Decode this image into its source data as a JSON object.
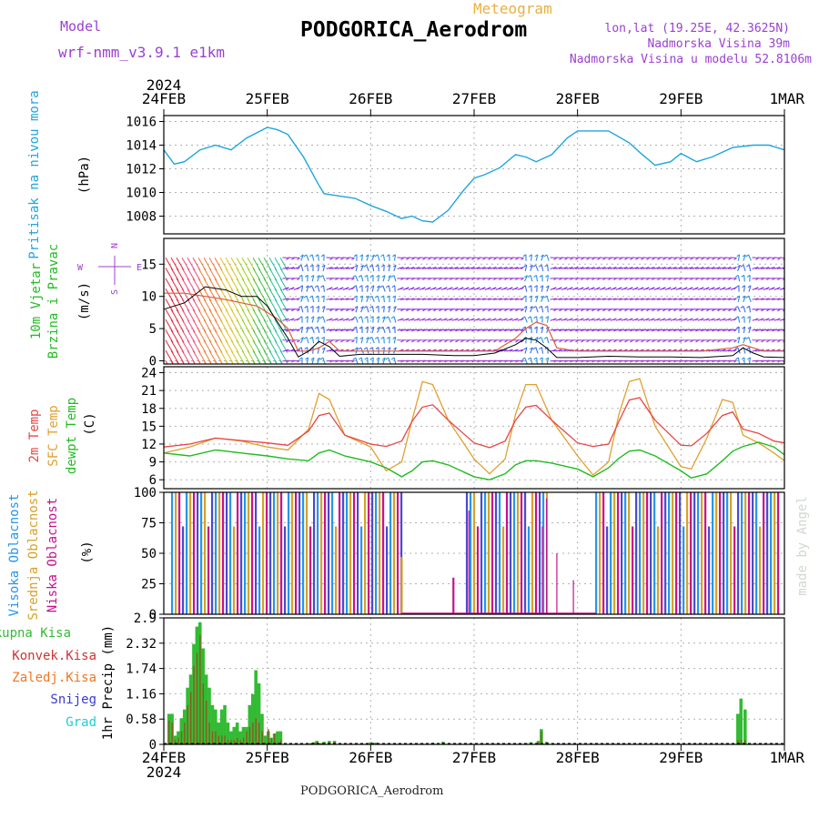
{
  "header": {
    "model_label": "Model",
    "model_name": "wrf-nmm_v3.9.1  e1km",
    "product": "Meteogram",
    "station": "PODGORICA_Aerodrom",
    "lonlat": "lon,lat (19.25E, 42.3625N)",
    "elevation": "Nadmorska Visina 39m",
    "model_elevation": "Nadmorska Visina u modelu 52.8106m",
    "footer_station": "PODGORICA_Aerodrom",
    "credit": "made by Angel"
  },
  "time_axis": {
    "year": "2024",
    "labels": [
      "24FEB",
      "25FEB",
      "26FEB",
      "27FEB",
      "28FEB",
      "29FEB",
      "1MAR"
    ]
  },
  "compass": {
    "n": "N",
    "s": "S",
    "e": "E",
    "w": "W"
  },
  "colors": {
    "pressure": "#1ea5e0",
    "wind_label": "#22bb22",
    "t2m": "#e84545",
    "sfc": "#e0a030",
    "dew": "#22bb22",
    "cloud_high": "#2596e8",
    "cloud_mid": "#d8a028",
    "cloud_low": "#c8108c",
    "precip_total": "#33bb33",
    "precip_conv": "#cc3333",
    "precip_frz": "#ee7722",
    "snow": "#3a3ad0",
    "hail": "#22cccc",
    "wind_barb": "#8a2be2",
    "header_purple": "#9b40d0",
    "header_orange": "#e8b040"
  },
  "chart_data": [
    {
      "type": "line",
      "title": "",
      "ylabel_lines": [
        "Pritisak na nivou mora",
        "(hPa)"
      ],
      "ylim": [
        1006.5,
        1016.5
      ],
      "yticks": [
        "1008",
        "1010",
        "1012",
        "1014",
        "1016"
      ],
      "x_unit": "days since 24FEB 00Z",
      "x": [
        0,
        0.1,
        0.2,
        0.35,
        0.5,
        0.65,
        0.8,
        1,
        1.1,
        1.2,
        1.35,
        1.5,
        1.55,
        1.7,
        1.85,
        2,
        2.15,
        2.3,
        2.4,
        2.5,
        2.6,
        2.75,
        2.9,
        3,
        3.1,
        3.25,
        3.4,
        3.5,
        3.6,
        3.75,
        3.9,
        4,
        4.15,
        4.3,
        4.5,
        4.6,
        4.75,
        4.9,
        5,
        5.15,
        5.3,
        5.5,
        5.7,
        5.85,
        6
      ],
      "series": [
        {
          "values": [
            1013.6,
            1012.4,
            1012.6,
            1013.6,
            1014.0,
            1013.6,
            1014.6,
            1015.5,
            1015.3,
            1014.9,
            1013.0,
            1010.6,
            1009.9,
            1009.7,
            1009.5,
            1008.9,
            1008.4,
            1007.8,
            1008.0,
            1007.6,
            1007.5,
            1008.5,
            1010.2,
            1011.2,
            1011.5,
            1012.1,
            1013.2,
            1013.0,
            1012.6,
            1013.2,
            1014.6,
            1015.2,
            1015.2,
            1015.2,
            1014.2,
            1013.4,
            1012.3,
            1012.6,
            1013.3,
            1012.6,
            1013.0,
            1013.8,
            1014.0,
            1014.0,
            1013.6
          ]
        }
      ]
    },
    {
      "type": "line",
      "title": "",
      "ylabel_lines": [
        "10m Vjetar",
        "Brzina i Pravac",
        "(m/s)"
      ],
      "ylim": [
        -0.5,
        19
      ],
      "yticks": [
        "0",
        "5",
        "10",
        "15"
      ],
      "x_unit": "days since 24FEB 00Z",
      "x": [
        0,
        0.2,
        0.4,
        0.6,
        0.75,
        0.9,
        1,
        1.1,
        1.2,
        1.3,
        1.4,
        1.5,
        1.6,
        1.7,
        1.9,
        2.2,
        2.5,
        2.8,
        3,
        3.2,
        3.4,
        3.5,
        3.6,
        3.7,
        3.8,
        4,
        4.3,
        4.6,
        4.9,
        5.2,
        5.5,
        5.6,
        5.7,
        5.8,
        6
      ],
      "series": [
        {
          "name": "gust",
          "values": [
            10.5,
            10.5,
            10,
            9.5,
            9,
            8.5,
            7.5,
            6.5,
            5,
            1.5,
            1.5,
            2,
            3,
            1.5,
            1.5,
            1.5,
            1.5,
            1.5,
            1.5,
            1.5,
            3.5,
            5,
            6,
            5.5,
            2,
            1.5,
            1.5,
            1.5,
            1.5,
            1.5,
            2,
            2.5,
            2,
            1.5,
            1.5
          ]
        },
        {
          "name": "speed",
          "values": [
            8,
            9,
            11.5,
            11,
            10,
            10,
            8.5,
            6,
            3.5,
            0.6,
            1.5,
            3,
            2.2,
            0.7,
            1,
            1,
            1,
            0.8,
            0.8,
            1.2,
            2.5,
            3.5,
            3.2,
            2,
            0.5,
            0.5,
            0.7,
            0.6,
            0.6,
            0.5,
            0.8,
            2,
            1.2,
            0.6,
            0.5
          ]
        }
      ]
    },
    {
      "type": "line",
      "title": "",
      "ylabel_lines": [
        "2m Temp",
        "SFC Temp",
        "dewpt Temp",
        "(C)"
      ],
      "ylim": [
        4.5,
        25
      ],
      "yticks": [
        "6",
        "9",
        "12",
        "15",
        "18",
        "21",
        "24"
      ],
      "x_unit": "days since 24FEB 00Z",
      "x": [
        0,
        0.25,
        0.5,
        0.75,
        1,
        1.2,
        1.4,
        1.5,
        1.6,
        1.75,
        2,
        2.15,
        2.3,
        2.4,
        2.5,
        2.6,
        2.75,
        3,
        3.15,
        3.3,
        3.4,
        3.5,
        3.6,
        3.75,
        4,
        4.15,
        4.3,
        4.4,
        4.5,
        4.6,
        4.75,
        5,
        5.1,
        5.25,
        5.4,
        5.5,
        5.6,
        5.75,
        5.9,
        6
      ],
      "series": [
        {
          "name": "2m Temp",
          "values": [
            11.5,
            12,
            13,
            12.6,
            12.2,
            11.8,
            14.2,
            16.8,
            17.2,
            13.5,
            12,
            11.6,
            12.5,
            15.8,
            18.2,
            18.6,
            16,
            12.2,
            11.4,
            12.5,
            16,
            18.2,
            18.5,
            16,
            12.2,
            11.6,
            12,
            15.8,
            19.4,
            19.8,
            16,
            11.8,
            11.7,
            13.8,
            16.8,
            17.4,
            14.5,
            13.8,
            12.5,
            12.2
          ]
        },
        {
          "name": "SFC Temp",
          "values": [
            10.5,
            11.5,
            13,
            12.5,
            11.5,
            11,
            14.5,
            20.5,
            19.5,
            13.5,
            11.5,
            7.5,
            9,
            16,
            22.5,
            22,
            16,
            9.5,
            7,
            9.5,
            17,
            22,
            22,
            16,
            10,
            6.8,
            9,
            17,
            22.5,
            23,
            15,
            8.2,
            7.8,
            13,
            19.5,
            19,
            13.5,
            12.2,
            10.5,
            9.2
          ]
        },
        {
          "name": "dewpt Temp",
          "values": [
            10.5,
            10,
            11,
            10.5,
            10,
            9.5,
            9.2,
            10.5,
            11,
            10,
            9,
            8,
            6.5,
            7.5,
            9,
            9.2,
            8.5,
            6.5,
            6,
            7,
            8.5,
            9.2,
            9.2,
            8.8,
            7.8,
            6.5,
            8,
            9.6,
            10.8,
            11,
            10,
            7.5,
            6.3,
            7,
            9.2,
            10.8,
            11.6,
            12.3,
            11.5,
            10.2
          ]
        }
      ]
    },
    {
      "type": "bar",
      "title": "",
      "ylabel_lines": [
        "Visoka Oblacnost",
        "Srednja Oblacnost",
        "Niska Oblacnost",
        "(%)"
      ],
      "ylim": [
        0,
        100
      ],
      "yticks": [
        "0",
        "25",
        "50",
        "75",
        "100"
      ],
      "x_unit": "days since 24FEB 00Z",
      "segments": [
        {
          "name": "Visoka Oblacnost",
          "x_start": 0.08,
          "x_end": 2.3,
          "value": 100
        },
        {
          "name": "Visoka Oblacnost",
          "x_start": 2.3,
          "x_end": 2.33,
          "value": 47
        },
        {
          "name": "Visoka Oblacnost",
          "x_start": 2.8,
          "x_end": 2.82,
          "value": 30
        },
        {
          "name": "Visoka Oblacnost",
          "x_start": 2.93,
          "x_end": 3.72,
          "value": 100
        },
        {
          "name": "Visoka Oblacnost",
          "x_start": 4.18,
          "x_end": 5.95,
          "value": 100
        }
      ],
      "spikes": [
        {
          "x": 3.6,
          "value": 30
        },
        {
          "x": 3.66,
          "value": 72
        },
        {
          "x": 3.7,
          "value": 95
        },
        {
          "x": 3.8,
          "value": 50
        },
        {
          "x": 3.96,
          "value": 28
        },
        {
          "x": 2.95,
          "value": 85
        }
      ]
    },
    {
      "type": "bar",
      "title": "",
      "ylabel_lines": [
        "Ukupna Kisa",
        "Konvek.Kisa",
        "Zaledj.Kisa",
        "Snijeg",
        "Grad",
        "1hr Precip (mm)"
      ],
      "ylim": [
        0,
        2.9
      ],
      "yticks": [
        "0",
        "0.58",
        "1.16",
        "1.74",
        "2.32",
        "2.9"
      ],
      "x_unit": "days since 24FEB 00Z",
      "x": [
        0.05,
        0.08,
        0.11,
        0.14,
        0.17,
        0.2,
        0.23,
        0.26,
        0.29,
        0.32,
        0.35,
        0.38,
        0.41,
        0.44,
        0.47,
        0.5,
        0.53,
        0.56,
        0.59,
        0.62,
        0.65,
        0.68,
        0.71,
        0.74,
        0.77,
        0.8,
        0.83,
        0.86,
        0.89,
        0.92,
        0.95,
        0.98,
        1.01,
        1.04,
        1.07,
        1.1,
        1.13,
        1.42,
        1.45,
        1.48,
        1.52,
        1.55,
        1.6,
        1.65,
        2.0,
        2.05,
        2.5,
        2.6,
        2.7,
        3.5,
        3.55,
        3.62,
        3.65,
        3.7,
        5.55,
        5.58,
        5.62
      ],
      "series": [
        {
          "name": "Ukupna Kisa",
          "values": [
            0.7,
            0.7,
            0.2,
            0.3,
            0.6,
            0.8,
            1.3,
            1.6,
            2.3,
            2.7,
            2.8,
            2.2,
            1.6,
            1.3,
            0.9,
            0.8,
            0.5,
            0.8,
            0.9,
            0.5,
            0.3,
            0.4,
            0.5,
            0.3,
            0.4,
            0.4,
            0.9,
            1.15,
            1.7,
            1.4,
            0.7,
            0.2,
            0.3,
            0.15,
            0.25,
            0.3,
            0.3,
            0.03,
            0.05,
            0.08,
            0.03,
            0.06,
            0.08,
            0.08,
            0.05,
            0.04,
            0.02,
            0.04,
            0.06,
            0.03,
            0.05,
            0.08,
            0.35,
            0.06,
            0.7,
            1.05,
            0.8
          ]
        },
        {
          "name": "Konvek.Kisa",
          "values": [
            0.55,
            0.5,
            0.1,
            0.15,
            0.3,
            0.5,
            0.9,
            1.2,
            1.8,
            2.1,
            2.5,
            1.4,
            1.0,
            0.5,
            0.3,
            0.3,
            0.2,
            0.2,
            0.2,
            0.1,
            0.1,
            0.1,
            0.15,
            0.1,
            0.15,
            0.3,
            0.4,
            0.5,
            0.6,
            0.5,
            0.3,
            0.05,
            0.35,
            0.15,
            0.25,
            0.05,
            0.1,
            0.02,
            0.04,
            0.06,
            0.02,
            0.03,
            0.05,
            0.06,
            0.04,
            0.02,
            0.01,
            0.03,
            0.05,
            0.02,
            0.03,
            0.05,
            0.3,
            0.04,
            0.1,
            0.1,
            0.1
          ]
        }
      ]
    }
  ]
}
